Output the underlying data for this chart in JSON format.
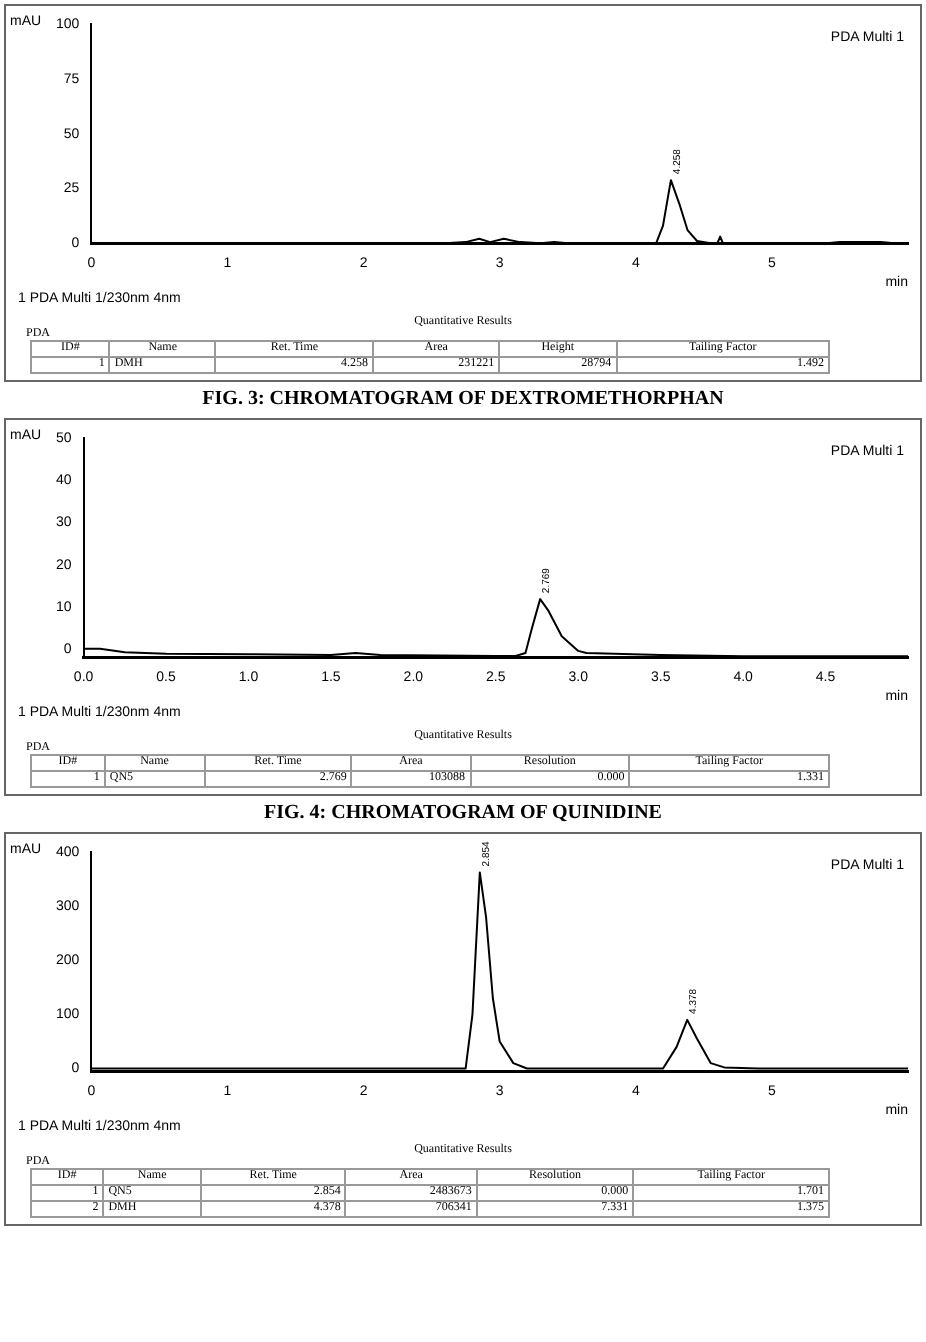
{
  "chart_data": [
    {
      "type": "line",
      "title": "FIG. 3: CHROMATOGRAM OF DEXTROMETHORPHAN",
      "xlabel": "min",
      "ylabel": "mAU",
      "legend": "top right",
      "marker": "none",
      "xlim": [
        0,
        6
      ],
      "xticks": [
        0,
        1,
        2,
        3,
        4,
        5
      ],
      "ylim": [
        0,
        100
      ],
      "yticks": [
        0,
        25,
        50,
        75,
        100
      ],
      "series": [
        {
          "name": "PDA Multi 1",
          "color": "#000000",
          "x": [
            0,
            2.6,
            2.75,
            2.85,
            2.93,
            3.03,
            3.15,
            3.3,
            3.4,
            3.5,
            4.15,
            4.2,
            4.258,
            4.32,
            4.38,
            4.45,
            4.55,
            4.6,
            4.62,
            4.64,
            5.4,
            5.5,
            5.8,
            5.9,
            6
          ],
          "values": [
            0,
            0,
            0.5,
            2,
            0.5,
            2,
            0.5,
            0,
            0.5,
            0,
            0,
            8,
            28.8,
            18,
            6,
            1,
            0,
            0,
            3,
            0,
            0,
            0.5,
            0.5,
            0,
            0
          ]
        }
      ],
      "annotations": [
        "1  PDA Multi 1/230nm 4nm",
        "Quantitative Results",
        "PDA",
        "ID#",
        "Name",
        "Ret. Time",
        "Area",
        "Height",
        "Tailing Factor",
        "1",
        "DMH",
        "4.258",
        "231221",
        "28794",
        "1.492",
        {
          "text": "4.258",
          "x": 4.258,
          "y": 28.8
        }
      ]
    },
    {
      "type": "line",
      "title": "FIG. 4: CHROMATOGRAM OF QUINIDINE",
      "xlabel": "min",
      "ylabel": "mAU",
      "legend": "top right",
      "marker": "none",
      "xlim": [
        0,
        5
      ],
      "xticks": [
        {
          "value": 0,
          "label": "0.0"
        },
        {
          "value": 0.5,
          "label": "0.5"
        },
        {
          "value": 1,
          "label": "1.0"
        },
        {
          "value": 1.5,
          "label": "1.5"
        },
        {
          "value": 2,
          "label": "2.0"
        },
        {
          "value": 2.5,
          "label": "2.5"
        },
        {
          "value": 3,
          "label": "3.0"
        },
        {
          "value": 3.5,
          "label": "3.5"
        },
        {
          "value": 4,
          "label": "4.0"
        },
        {
          "value": 4.5,
          "label": "4.5"
        }
      ],
      "ylim": [
        -2,
        50
      ],
      "yticks": [
        0,
        10,
        20,
        30,
        40,
        50
      ],
      "series": [
        {
          "name": "PDA Multi 1",
          "color": "#000000",
          "x": [
            0,
            0.1,
            0.25,
            0.5,
            1,
            1.5,
            1.65,
            1.8,
            2.5,
            2.62,
            2.68,
            2.72,
            2.769,
            2.82,
            2.9,
            3,
            3.05,
            3.5,
            4,
            5
          ],
          "values": [
            0,
            0,
            -0.8,
            -1.2,
            -1.3,
            -1.5,
            -1,
            -1.5,
            -1.7,
            -1.7,
            -1,
            5,
            11.8,
            9,
            3,
            -0.5,
            -1,
            -1.5,
            -1.8,
            -1.8
          ]
        }
      ],
      "annotations": [
        "1  PDA Multi 1/230nm 4nm",
        "Quantitative Results",
        "PDA",
        "ID#",
        "Name",
        "Ret. Time",
        "Area",
        "Resolution",
        "Tailing Factor",
        "1",
        "QN5",
        "2.769",
        "103088",
        "0.000",
        "1.331",
        {
          "text": "2.769",
          "x": 2.769,
          "y": 11.8
        }
      ]
    },
    {
      "type": "line",
      "xlabel": "min",
      "ylabel": "mAU",
      "legend": "top right",
      "marker": "none",
      "xlim": [
        0,
        6
      ],
      "xticks": [
        0,
        1,
        2,
        3,
        4,
        5
      ],
      "ylim": [
        -5,
        400
      ],
      "yticks": [
        0,
        100,
        200,
        300,
        400
      ],
      "series": [
        {
          "name": "PDA Multi 1",
          "color": "#000000",
          "x": [
            0,
            2.75,
            2.8,
            2.854,
            2.9,
            2.95,
            3,
            3.1,
            3.2,
            4.2,
            4.3,
            4.378,
            4.45,
            4.55,
            4.65,
            4.9,
            6
          ],
          "values": [
            0,
            0,
            100,
            363,
            280,
            130,
            50,
            10,
            0,
            0,
            40,
            90,
            55,
            10,
            2,
            0,
            0
          ]
        }
      ],
      "annotations": [
        "1  PDA Multi 1/230nm 4nm",
        "Quantitative Results",
        "PDA",
        "ID#",
        "Name",
        "Ret. Time",
        "Area",
        "Resolution",
        "Tailing Factor",
        "1",
        "QN5",
        "2.854",
        "2483673",
        "0.000",
        "1.701",
        "2",
        "DMH",
        "4.378",
        "706341",
        "7.331",
        "1.375",
        {
          "text": "2.854",
          "x": 2.854,
          "y": 363
        },
        {
          "text": "4.378",
          "x": 4.378,
          "y": 90
        }
      ]
    }
  ]
}
